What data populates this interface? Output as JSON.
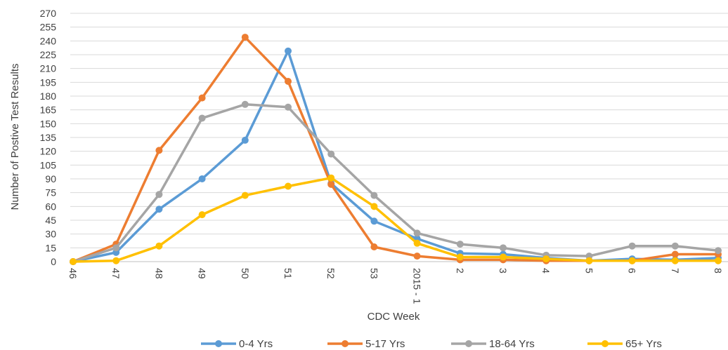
{
  "chart_data": {
    "type": "line",
    "title": "",
    "xlabel": "CDC Week",
    "ylabel": "Number of Postive Test Results",
    "ylim": [
      0,
      270
    ],
    "yticks": [
      0,
      15,
      30,
      45,
      60,
      75,
      90,
      105,
      120,
      135,
      150,
      165,
      180,
      195,
      210,
      225,
      240,
      255,
      270
    ],
    "grid": "horizontal",
    "legend_position": "bottom",
    "categories": [
      "46",
      "47",
      "48",
      "49",
      "50",
      "51",
      "52",
      "53",
      "2015 - 1",
      "2",
      "3",
      "4",
      "5",
      "6",
      "7",
      "8"
    ],
    "series": [
      {
        "name": "0-4 Yrs",
        "color": "#5b9bd5",
        "values": [
          0,
          10,
          57,
          90,
          132,
          229,
          85,
          44,
          25,
          9,
          8,
          4,
          1,
          3,
          2,
          4
        ]
      },
      {
        "name": "5-17 Yrs",
        "color": "#ed7d31",
        "values": [
          0,
          19,
          121,
          178,
          244,
          196,
          84,
          16,
          6,
          2,
          2,
          1,
          1,
          1,
          8,
          8
        ]
      },
      {
        "name": "18-64 Yrs",
        "color": "#a5a5a5",
        "values": [
          0,
          15,
          73,
          156,
          171,
          168,
          117,
          72,
          31,
          19,
          15,
          7,
          6,
          17,
          17,
          12
        ]
      },
      {
        "name": "65+ Yrs",
        "color": "#ffc000",
        "values": [
          0,
          1,
          17,
          51,
          72,
          82,
          91,
          60,
          20,
          5,
          5,
          3,
          1,
          1,
          1,
          1
        ]
      }
    ]
  }
}
